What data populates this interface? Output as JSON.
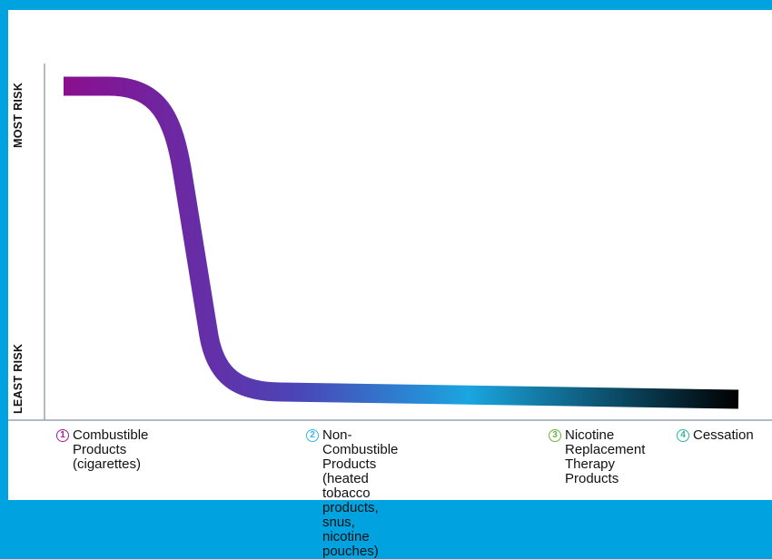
{
  "axis": {
    "top_label": "MOST RISK",
    "bottom_label": "LEAST RISK"
  },
  "curve": {
    "gradient_colors": [
      "#8a0f8f",
      "#6330a8",
      "#4a46b8",
      "#1aa6e0",
      "#000000"
    ]
  },
  "stages": [
    {
      "number": "1",
      "label": "Combustible\nProducts\n(cigarettes)",
      "color": "#a0208f"
    },
    {
      "number": "2",
      "label": "Non-Combustible Products\n(heated tobacco products,\nsnus, nicotine pouches)",
      "color": "#39b6e3"
    },
    {
      "number": "3",
      "label": "Nicotine\nReplacement\nTherapy\nProducts",
      "color": "#6cb33f"
    },
    {
      "number": "4",
      "label": "Cessation",
      "color": "#2cb1a8"
    }
  ]
}
